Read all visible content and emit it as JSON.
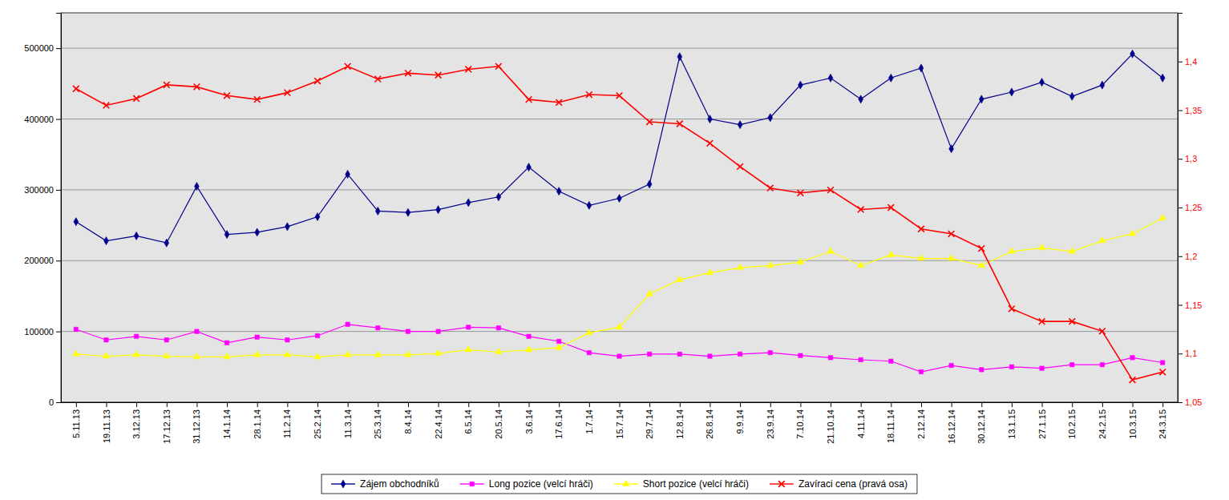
{
  "chart_data": {
    "type": "line",
    "categories": [
      "5.11.13",
      "19.11.13",
      "3.12.13",
      "17.12.13",
      "31.12.13",
      "14.1.14",
      "28.1.14",
      "11.2.14",
      "25.2.14",
      "11.3.14",
      "25.3.14",
      "8.4.14",
      "22.4.14",
      "6.5.14",
      "20.5.14",
      "3.6.14",
      "17.6.14",
      "1.7.14",
      "15.7.14",
      "29.7.14",
      "12.8.14",
      "26.8.14",
      "9.9.14",
      "23.9.14",
      "7.10.14",
      "21.10.14",
      "4.11.14",
      "18.11.14",
      "2.12.14",
      "16.12.14",
      "30.12.14",
      "13.1.15",
      "27.1.15",
      "10.2.15",
      "24.2.15",
      "10.3.15",
      "24.3.15"
    ],
    "series": [
      {
        "name": "Zájem obchodníků",
        "color": "#00008B",
        "marker": "diamond",
        "values": [
          255000,
          228000,
          235000,
          225000,
          305000,
          237000,
          240000,
          248000,
          262000,
          322000,
          270000,
          268000,
          272000,
          282000,
          290000,
          332000,
          298000,
          278000,
          288000,
          308000,
          488000,
          400000,
          392000,
          402000,
          448000,
          458000,
          428000,
          458000,
          472000,
          358000,
          428000,
          438000,
          452000,
          432000,
          448000,
          492000,
          458000
        ]
      },
      {
        "name": "Long pozice (velcí hráči)",
        "color": "#FF00FF",
        "marker": "square",
        "values": [
          103000,
          88000,
          93000,
          88000,
          100000,
          84000,
          92000,
          88000,
          94000,
          110000,
          105000,
          100000,
          100000,
          106000,
          105000,
          93000,
          86000,
          70000,
          65000,
          68000,
          68000,
          65000,
          68000,
          70000,
          66000,
          63000,
          60000,
          58000,
          43000,
          52000,
          46000,
          50000,
          48000,
          53000,
          53000,
          63000,
          56000
        ]
      },
      {
        "name": "Short pozice (velcí hráči)",
        "color": "#FFFF00",
        "marker": "triangle",
        "values": [
          68000,
          65000,
          67000,
          65000,
          64000,
          64000,
          67000,
          67000,
          64000,
          67000,
          67000,
          67000,
          69000,
          74000,
          71000,
          74000,
          77000,
          98000,
          106000,
          153000,
          173000,
          183000,
          190000,
          193000,
          198000,
          213000,
          193000,
          208000,
          203000,
          203000,
          193000,
          213000,
          218000,
          213000,
          228000,
          238000,
          260000
        ]
      },
      {
        "name": "Zavíraci cena (pravá osa)",
        "color": "#FF0000",
        "marker": "x",
        "axis": "y2",
        "values": [
          1.372,
          1.355,
          1.362,
          1.376,
          1.374,
          1.365,
          1.361,
          1.368,
          1.38,
          1.395,
          1.382,
          1.388,
          1.386,
          1.392,
          1.395,
          1.361,
          1.358,
          1.366,
          1.365,
          1.338,
          1.336,
          1.316,
          1.292,
          1.27,
          1.265,
          1.268,
          1.248,
          1.25,
          1.228,
          1.223,
          1.208,
          1.146,
          1.133,
          1.133,
          1.123,
          1.073,
          1.081
        ]
      }
    ],
    "ylim": [
      0,
      550000
    ],
    "yticks": [
      0,
      100000,
      200000,
      300000,
      400000,
      500000
    ],
    "y2lim": [
      1.05,
      1.45
    ],
    "y2ticks": [
      {
        "value": 1.05,
        "label": "1,05"
      },
      {
        "value": 1.1,
        "label": "1,1"
      },
      {
        "value": 1.15,
        "label": "1,15"
      },
      {
        "value": 1.2,
        "label": "1,2"
      },
      {
        "value": 1.25,
        "label": "1,25"
      },
      {
        "value": 1.3,
        "label": "1,3"
      },
      {
        "value": 1.35,
        "label": "1,35"
      },
      {
        "value": 1.4,
        "label": "1,4"
      }
    ],
    "grid": true,
    "legend": "bottom"
  }
}
